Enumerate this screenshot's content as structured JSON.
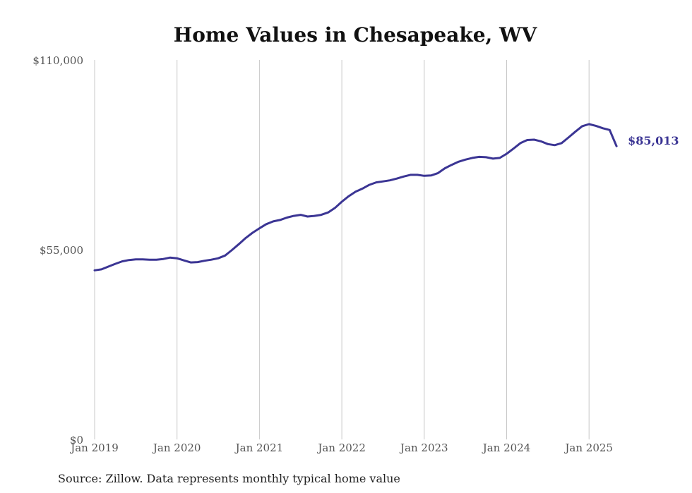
{
  "chart_data": {
    "type": "line",
    "title": "Home Values in Chesapeake, WV",
    "xlabel": "",
    "ylabel": "",
    "x_ticks": [
      "Jan 2019",
      "Jan 2020",
      "Jan 2021",
      "Jan 2022",
      "Jan 2023",
      "Jan 2024",
      "Jan 2025"
    ],
    "y_ticks": [
      {
        "value": 0,
        "label": "$0"
      },
      {
        "value": 55000,
        "label": "$55,000"
      },
      {
        "value": 110000,
        "label": "$110,000"
      }
    ],
    "ylim": [
      0,
      110000
    ],
    "xlim": [
      "2019-01",
      "2025-05"
    ],
    "grid": {
      "vertical": true,
      "horizontal": false
    },
    "line_color": "#3b3594",
    "series": [
      {
        "x": [
          "2019-01",
          "2019-02",
          "2019-03",
          "2019-04",
          "2019-05",
          "2019-06",
          "2019-07",
          "2019-08",
          "2019-09",
          "2019-10",
          "2019-11",
          "2019-12",
          "2020-01",
          "2020-02",
          "2020-03",
          "2020-04",
          "2020-05",
          "2020-06",
          "2020-07",
          "2020-08",
          "2020-09",
          "2020-10",
          "2020-11",
          "2020-12",
          "2021-01",
          "2021-02",
          "2021-03",
          "2021-04",
          "2021-05",
          "2021-06",
          "2021-07",
          "2021-08",
          "2021-09",
          "2021-10",
          "2021-11",
          "2021-12",
          "2022-01",
          "2022-02",
          "2022-03",
          "2022-04",
          "2022-05",
          "2022-06",
          "2022-07",
          "2022-08",
          "2022-09",
          "2022-10",
          "2022-11",
          "2022-12",
          "2023-01",
          "2023-02",
          "2023-03",
          "2023-04",
          "2023-05",
          "2023-06",
          "2023-07",
          "2023-08",
          "2023-09",
          "2023-10",
          "2023-11",
          "2023-12",
          "2024-01",
          "2024-02",
          "2024-03",
          "2024-04",
          "2024-05",
          "2024-06",
          "2024-07",
          "2024-08",
          "2024-09",
          "2024-10",
          "2024-11",
          "2024-12",
          "2025-01",
          "2025-02",
          "2025-03",
          "2025-04",
          "2025-05"
        ],
        "values": [
          49000,
          49300,
          50100,
          50900,
          51600,
          52000,
          52200,
          52200,
          52100,
          52100,
          52300,
          52700,
          52500,
          51900,
          51300,
          51400,
          51800,
          52100,
          52500,
          53300,
          54900,
          56600,
          58400,
          59900,
          61200,
          62400,
          63200,
          63600,
          64300,
          64800,
          65100,
          64600,
          64800,
          65100,
          65800,
          67100,
          68900,
          70500,
          71800,
          72700,
          73800,
          74500,
          74800,
          75100,
          75600,
          76200,
          76700,
          76700,
          76400,
          76500,
          77200,
          78600,
          79600,
          80500,
          81100,
          81600,
          81900,
          81800,
          81400,
          81600,
          82800,
          84300,
          85900,
          86800,
          86900,
          86400,
          85600,
          85300,
          85900,
          87500,
          89200,
          90800,
          91400,
          90900,
          90200,
          89700,
          85013
        ],
        "end_label": "$85,013"
      }
    ]
  },
  "source": "Source: Zillow. Data represents monthly typical home value"
}
